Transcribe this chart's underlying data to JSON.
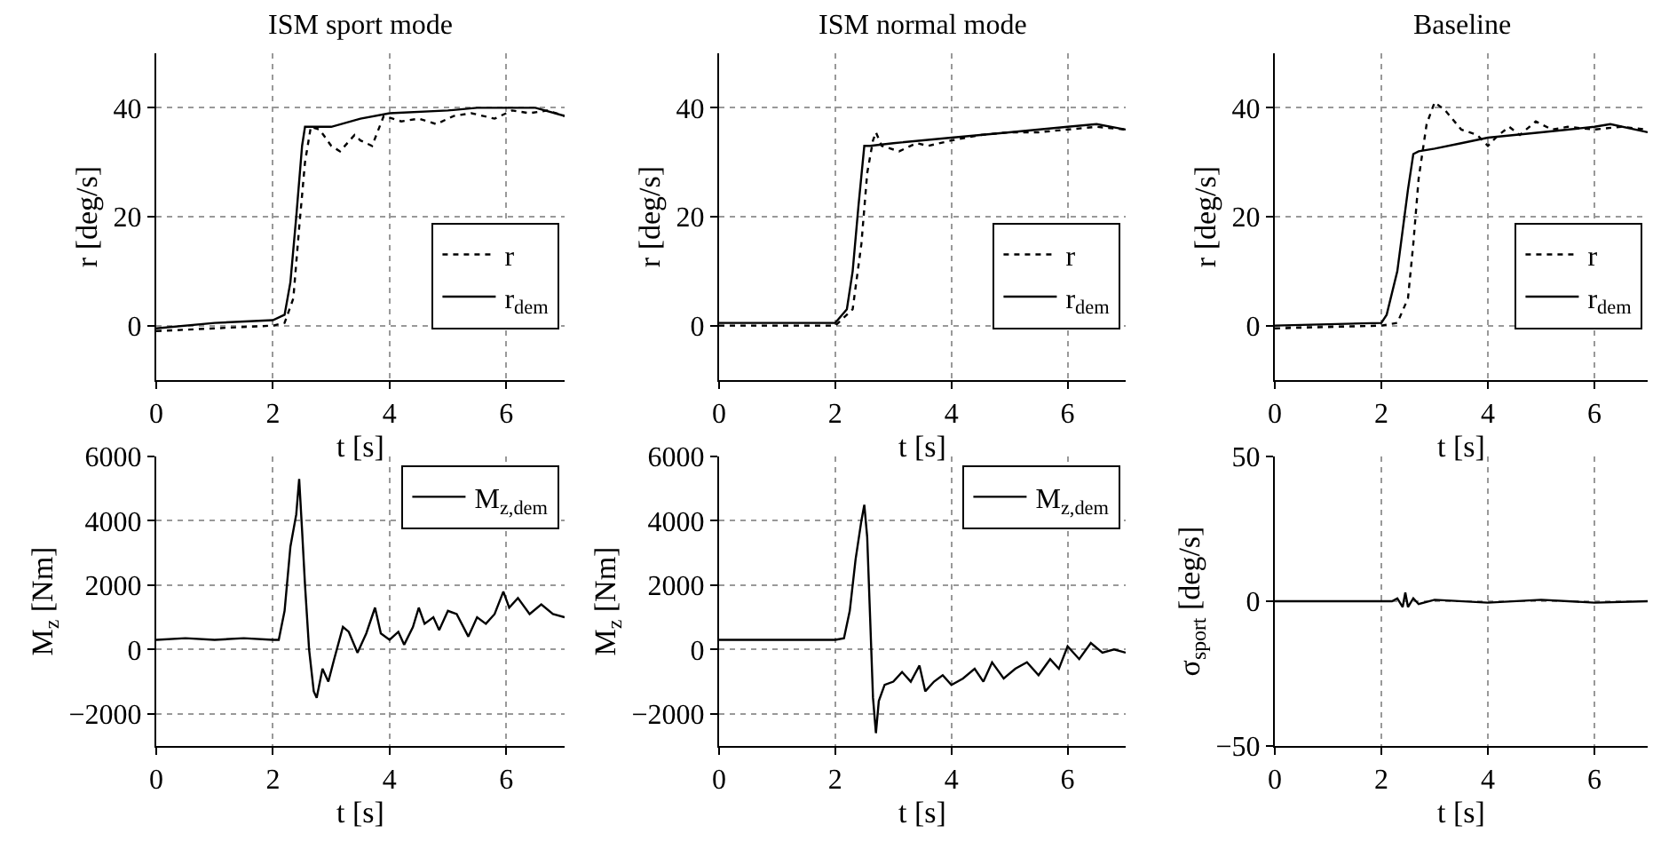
{
  "chart_data": [
    {
      "type": "line",
      "title": "ISM sport mode",
      "xlabel": "t [s]",
      "ylabel": "r [deg/s]",
      "xlim": [
        0,
        7
      ],
      "xticks": [
        0,
        2,
        4,
        6
      ],
      "ylim": [
        -10,
        50
      ],
      "yticks": [
        0,
        20,
        40
      ],
      "grid": true,
      "legend": "bottom right",
      "series": [
        {
          "name": "r",
          "color": "#000000",
          "line_style": "dotted",
          "x": [
            0,
            1,
            2,
            2.2,
            2.35,
            2.45,
            2.55,
            2.65,
            2.8,
            3,
            3.15,
            3.4,
            3.5,
            3.7,
            3.9,
            4.2,
            4.5,
            4.8,
            5.1,
            5.4,
            5.8,
            6.1,
            6.4,
            6.7,
            7
          ],
          "values": [
            -1,
            -0.5,
            0,
            0.5,
            5,
            18,
            30,
            36.5,
            36,
            33,
            32,
            35,
            34,
            33,
            38.5,
            37.5,
            38,
            37,
            38.5,
            39,
            38,
            39.5,
            39,
            39.5,
            38.5
          ]
        },
        {
          "name": "r$_{dem}$",
          "color": "#000000",
          "line_style": "solid",
          "x": [
            0,
            1,
            2,
            2.2,
            2.3,
            2.4,
            2.5,
            2.55,
            3,
            3.5,
            4,
            5,
            5.5,
            6.5,
            7
          ],
          "values": [
            -0.5,
            0.5,
            1,
            2,
            8,
            20,
            33,
            36.5,
            36.5,
            38,
            39,
            39.5,
            40,
            40,
            38.5
          ]
        }
      ]
    },
    {
      "type": "line",
      "title": "ISM normal mode",
      "xlabel": "t [s]",
      "ylabel": "r [deg/s]",
      "xlim": [
        0,
        7
      ],
      "xticks": [
        0,
        2,
        4,
        6
      ],
      "ylim": [
        -10,
        50
      ],
      "yticks": [
        0,
        20,
        40
      ],
      "grid": true,
      "legend": "bottom right",
      "series": [
        {
          "name": "r",
          "color": "#000000",
          "line_style": "dotted",
          "x": [
            0,
            2,
            2.3,
            2.45,
            2.55,
            2.65,
            2.7,
            2.8,
            3.1,
            3.4,
            3.6,
            4,
            4.5,
            5,
            5.5,
            6,
            6.5,
            7
          ],
          "values": [
            0,
            0,
            3,
            15,
            28,
            34,
            35.5,
            33,
            32,
            33.5,
            33,
            34,
            35,
            35.5,
            35.5,
            36,
            36.5,
            36
          ]
        },
        {
          "name": "r$_{dem}$",
          "color": "#000000",
          "line_style": "solid",
          "x": [
            0,
            2,
            2.2,
            2.3,
            2.4,
            2.5,
            2.6,
            3,
            4,
            5,
            6,
            6.5,
            7
          ],
          "values": [
            0.5,
            0.5,
            3,
            10,
            22,
            33,
            33,
            33.5,
            34.5,
            35.5,
            36.5,
            37,
            36
          ]
        }
      ]
    },
    {
      "type": "line",
      "title": "Baseline",
      "xlabel": "t [s]",
      "ylabel": "r [deg/s]",
      "xlim": [
        0,
        7
      ],
      "xticks": [
        0,
        2,
        4,
        6
      ],
      "ylim": [
        -10,
        50
      ],
      "yticks": [
        0,
        20,
        40
      ],
      "grid": true,
      "legend": "bottom right",
      "series": [
        {
          "name": "r",
          "color": "#000000",
          "line_style": "dotted",
          "x": [
            0,
            2,
            2.3,
            2.5,
            2.6,
            2.7,
            2.85,
            3,
            3.2,
            3.5,
            3.8,
            4,
            4.2,
            4.4,
            4.6,
            4.9,
            5.2,
            5.5,
            6,
            6.5,
            7
          ],
          "values": [
            -0.5,
            0,
            0.5,
            5,
            15,
            27,
            37,
            41,
            39.5,
            36,
            35,
            33,
            35,
            36.5,
            35,
            37.5,
            36,
            36.5,
            36,
            36.5,
            36
          ]
        },
        {
          "name": "r$_{dem}$",
          "color": "#000000",
          "line_style": "solid",
          "x": [
            0,
            2,
            2.1,
            2.3,
            2.5,
            2.6,
            2.7,
            3,
            3.5,
            4,
            5,
            6,
            6.3,
            7
          ],
          "values": [
            0,
            0.5,
            2,
            10,
            25,
            31.5,
            32,
            32.5,
            33.5,
            34.5,
            35.5,
            36.5,
            37,
            35.5
          ]
        }
      ]
    },
    {
      "type": "line",
      "xlabel": "t [s]",
      "ylabel": "M$_{z}$ [Nm]",
      "xlim": [
        0,
        7
      ],
      "xticks": [
        0,
        2,
        4,
        6
      ],
      "ylim": [
        -3000,
        6000
      ],
      "yticks": [
        -2000,
        0,
        2000,
        4000,
        6000
      ],
      "grid": true,
      "legend": "top right",
      "series": [
        {
          "name": "M$_{z,dem}$",
          "color": "#000000",
          "line_style": "solid",
          "x": [
            0,
            0.5,
            1,
            1.5,
            2,
            2.1,
            2.2,
            2.3,
            2.4,
            2.45,
            2.5,
            2.55,
            2.62,
            2.7,
            2.75,
            2.85,
            2.95,
            3.05,
            3.2,
            3.3,
            3.45,
            3.6,
            3.75,
            3.85,
            4,
            4.15,
            4.25,
            4.4,
            4.5,
            4.6,
            4.75,
            4.85,
            5,
            5.15,
            5.35,
            5.5,
            5.65,
            5.8,
            5.95,
            6.05,
            6.2,
            6.4,
            6.6,
            6.8,
            7
          ],
          "values": [
            300,
            350,
            300,
            350,
            300,
            300,
            1200,
            3200,
            4200,
            5300,
            3700,
            2000,
            0,
            -1300,
            -1500,
            -600,
            -1000,
            -300,
            700,
            550,
            -100,
            500,
            1300,
            500,
            300,
            550,
            150,
            700,
            1300,
            800,
            1000,
            600,
            1200,
            1100,
            400,
            1000,
            800,
            1100,
            1800,
            1300,
            1600,
            1100,
            1400,
            1100,
            1000
          ]
        }
      ]
    },
    {
      "type": "line",
      "xlabel": "t [s]",
      "ylabel": "M$_{z}$ [Nm]",
      "xlim": [
        0,
        7
      ],
      "xticks": [
        0,
        2,
        4,
        6
      ],
      "ylim": [
        -3000,
        6000
      ],
      "yticks": [
        -2000,
        0,
        2000,
        4000,
        6000
      ],
      "grid": true,
      "legend": "top right",
      "series": [
        {
          "name": "M$_{z,dem}$",
          "color": "#000000",
          "line_style": "solid",
          "x": [
            0,
            1,
            2,
            2.15,
            2.25,
            2.35,
            2.45,
            2.5,
            2.55,
            2.6,
            2.65,
            2.7,
            2.75,
            2.85,
            3,
            3.15,
            3.3,
            3.45,
            3.55,
            3.7,
            3.85,
            4,
            4.2,
            4.4,
            4.55,
            4.7,
            4.9,
            5.1,
            5.3,
            5.5,
            5.7,
            5.85,
            6,
            6.2,
            6.4,
            6.6,
            6.8,
            7
          ],
          "values": [
            300,
            300,
            300,
            350,
            1200,
            2800,
            4000,
            4500,
            3500,
            1000,
            -1500,
            -2600,
            -1600,
            -1100,
            -1000,
            -700,
            -1000,
            -500,
            -1300,
            -1000,
            -800,
            -1100,
            -900,
            -600,
            -1000,
            -400,
            -900,
            -600,
            -400,
            -800,
            -300,
            -600,
            100,
            -300,
            200,
            -100,
            0,
            -100
          ]
        }
      ]
    },
    {
      "type": "line",
      "xlabel": "t [s]",
      "ylabel": "σ$_{sport}$ [deg/s]",
      "xlim": [
        0,
        7
      ],
      "xticks": [
        0,
        2,
        4,
        6
      ],
      "ylim": [
        -50,
        50
      ],
      "yticks": [
        -50,
        0,
        50
      ],
      "grid": true,
      "series": [
        {
          "color": "#000000",
          "line_style": "solid",
          "x": [
            0,
            2.2,
            2.3,
            2.4,
            2.45,
            2.5,
            2.6,
            2.7,
            3,
            4,
            5,
            6,
            7
          ],
          "values": [
            0,
            0,
            1,
            -2,
            3,
            -2,
            1,
            -1,
            0.5,
            -0.5,
            0.5,
            -0.5,
            0
          ]
        }
      ]
    }
  ]
}
